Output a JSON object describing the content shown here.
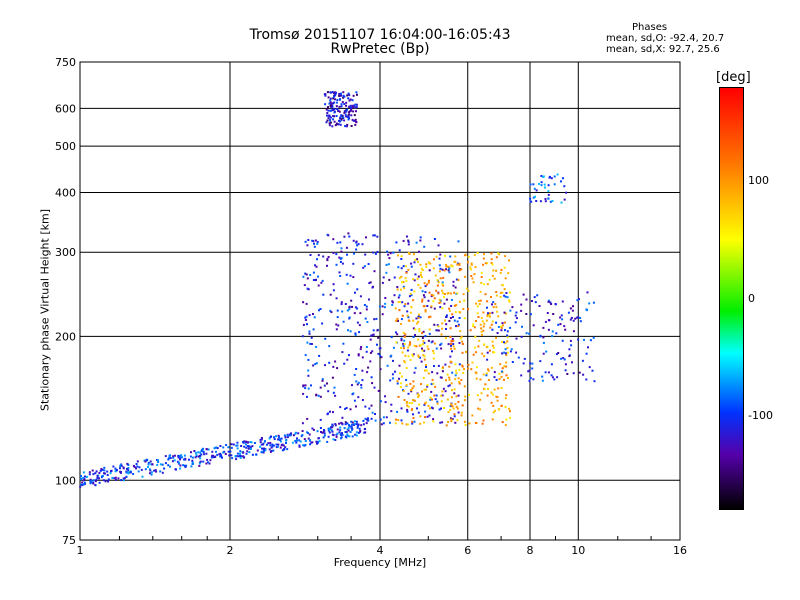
{
  "chart_data": {
    "type": "scatter",
    "title": "Tromsø 20151107 16:04:00-16:05:43",
    "subtitle": "RwPretec (Bp)",
    "xlabel": "Frequency [MHz]",
    "ylabel": "Stationary phase Virtual Height [km]",
    "x_scale": "log",
    "y_scale": "log",
    "xlim": [
      1,
      16
    ],
    "ylim": [
      75,
      750
    ],
    "x_ticks": [
      "1",
      "2",
      "4",
      "6",
      "8",
      "10",
      "16"
    ],
    "y_ticks": [
      "75",
      "100",
      "200",
      "300",
      "400",
      "500",
      "600",
      "750"
    ],
    "grid": true,
    "colorbar": {
      "label": "[deg]",
      "range": [
        -180,
        180
      ],
      "ticks": [
        "100",
        "0",
        "-100"
      ],
      "colormap": "rainbow (black-purple-blue-cyan-green-yellow-red)"
    },
    "stats": {
      "heading": "Phases",
      "o_mode": "mean, sd,O: -92.4, 20.7",
      "x_mode": "mean, sd,X:  92.7, 25.6"
    },
    "clusters": [
      {
        "label": "low-band blue trace",
        "x_range": [
          1.0,
          3.8
        ],
        "h_range": [
          100,
          130
        ],
        "phase": -100,
        "density": "high"
      },
      {
        "label": "spread F blue/purple",
        "x_range": [
          2.8,
          5.8
        ],
        "h_range": [
          130,
          330
        ],
        "phase": -110,
        "density": "high"
      },
      {
        "label": "upper echo cluster",
        "x_range": [
          3.1,
          3.6
        ],
        "h_range": [
          550,
          650
        ],
        "phase": -120,
        "density": "medium"
      },
      {
        "label": "yellow/orange X-mode region",
        "x_range": [
          4.3,
          7.3
        ],
        "h_range": [
          130,
          300
        ],
        "phase": 90,
        "density": "high"
      },
      {
        "label": "upper-frequency band",
        "x_range": [
          6.5,
          10.8
        ],
        "h_range": [
          160,
          250
        ],
        "phase": -110,
        "density": "medium"
      },
      {
        "label": "high echo far right",
        "x_range": [
          8.0,
          9.5
        ],
        "h_range": [
          380,
          440
        ],
        "phase": -90,
        "density": "low"
      }
    ]
  }
}
